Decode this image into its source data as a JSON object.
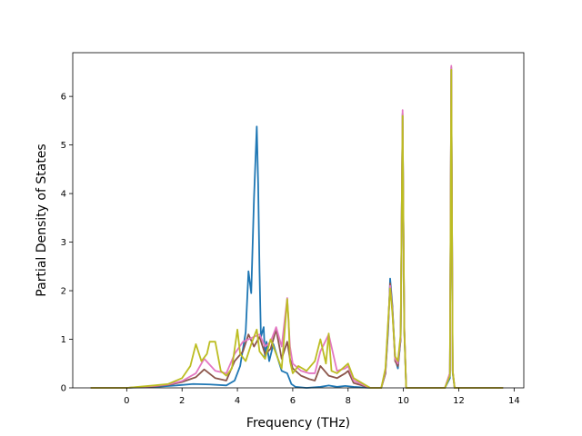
{
  "chart_data": {
    "type": "line",
    "title": "",
    "xlabel": "Frequency (THz)",
    "ylabel": "Partial Density of States",
    "xlim": [
      -1.95,
      14.35
    ],
    "ylim": [
      0,
      6.9
    ],
    "xticks": [
      0,
      2,
      4,
      6,
      8,
      10,
      12,
      14
    ],
    "yticks": [
      0,
      1,
      2,
      3,
      4,
      5,
      6
    ],
    "grid": false,
    "legend": "none",
    "series": [
      {
        "color": "#1f77b4",
        "x": [
          -1.3,
          0,
          1,
          1.8,
          2.4,
          3.0,
          3.6,
          3.9,
          4.1,
          4.3,
          4.4,
          4.5,
          4.6,
          4.7,
          4.75,
          4.8,
          4.85,
          4.95,
          5.0,
          5.05,
          5.15,
          5.3,
          5.6,
          5.8,
          5.95,
          6.1,
          6.5,
          7.0,
          7.3,
          7.6,
          7.9,
          8.2,
          8.8,
          9.2,
          9.35,
          9.45,
          9.52,
          9.6,
          9.7,
          9.8,
          9.9,
          9.97,
          10.03,
          10.1,
          10.2,
          11.5,
          11.68,
          11.73,
          11.78,
          11.85,
          12.0,
          13.6
        ],
        "y": [
          0,
          0,
          0.02,
          0.05,
          0.08,
          0.07,
          0.05,
          0.15,
          0.45,
          1.15,
          2.4,
          1.95,
          3.9,
          5.38,
          4.2,
          2.4,
          1.05,
          1.25,
          0.6,
          0.95,
          0.55,
          0.9,
          0.35,
          0.3,
          0.08,
          0.02,
          0,
          0.02,
          0.05,
          0.02,
          0.04,
          0.02,
          0,
          0,
          0.3,
          1.2,
          2.25,
          1.7,
          0.6,
          0.4,
          1.0,
          5.6,
          1.2,
          0,
          0,
          0,
          0.2,
          6.55,
          0.3,
          0,
          0,
          0
        ]
      },
      {
        "color": "#8c564b",
        "x": [
          -1.3,
          0,
          1,
          1.5,
          2,
          2.5,
          2.8,
          3.2,
          3.6,
          3.9,
          4.2,
          4.4,
          4.6,
          4.8,
          5.0,
          5.2,
          5.4,
          5.6,
          5.8,
          5.9,
          6.0,
          6.3,
          6.6,
          6.8,
          7.0,
          7.3,
          7.6,
          7.9,
          8.0,
          8.2,
          8.8,
          9.2,
          9.35,
          9.45,
          9.52,
          9.6,
          9.7,
          9.8,
          9.9,
          9.97,
          10.03,
          10.1,
          10.2,
          11.5,
          11.68,
          11.73,
          11.78,
          11.85,
          12.0,
          13.6
        ],
        "y": [
          0,
          0,
          0.03,
          0.06,
          0.12,
          0.22,
          0.38,
          0.2,
          0.15,
          0.55,
          0.75,
          1.1,
          0.85,
          1.05,
          0.7,
          0.8,
          1.2,
          0.6,
          0.95,
          0.6,
          0.4,
          0.25,
          0.18,
          0.15,
          0.45,
          0.25,
          0.2,
          0.3,
          0.35,
          0.1,
          0,
          0,
          0.3,
          1.3,
          2.15,
          1.65,
          0.55,
          0.45,
          1.0,
          5.65,
          1.25,
          0,
          0,
          0,
          0.3,
          6.6,
          0.35,
          0,
          0,
          0
        ]
      },
      {
        "color": "#e377c2",
        "x": [
          -1.3,
          0,
          1,
          1.5,
          2,
          2.5,
          2.8,
          3.2,
          3.6,
          3.9,
          4.2,
          4.4,
          4.6,
          4.8,
          5.0,
          5.2,
          5.4,
          5.6,
          5.8,
          5.9,
          6.0,
          6.3,
          6.6,
          6.8,
          7.0,
          7.3,
          7.6,
          7.9,
          8.0,
          8.2,
          8.8,
          9.2,
          9.35,
          9.45,
          9.52,
          9.6,
          9.7,
          9.8,
          9.9,
          9.97,
          10.03,
          10.1,
          10.2,
          11.5,
          11.68,
          11.73,
          11.78,
          11.85,
          12.0,
          13.6
        ],
        "y": [
          0,
          0,
          0.04,
          0.07,
          0.14,
          0.3,
          0.6,
          0.35,
          0.3,
          0.7,
          0.95,
          1.0,
          1.05,
          1.1,
          0.85,
          0.95,
          1.25,
          0.85,
          1.85,
          0.85,
          0.5,
          0.35,
          0.3,
          0.3,
          0.75,
          1.1,
          0.35,
          0.4,
          0.45,
          0.15,
          0,
          0,
          0.35,
          1.35,
          2.1,
          1.6,
          0.6,
          0.5,
          1.05,
          5.72,
          1.3,
          0,
          0,
          0,
          0.3,
          6.63,
          0.35,
          0,
          0,
          0
        ]
      },
      {
        "color": "#bcbd22",
        "x": [
          -1.3,
          0,
          1,
          1.5,
          2,
          2.3,
          2.5,
          2.7,
          2.9,
          3.0,
          3.2,
          3.4,
          3.6,
          3.8,
          4.0,
          4.1,
          4.3,
          4.5,
          4.7,
          4.8,
          5.0,
          5.2,
          5.4,
          5.6,
          5.8,
          5.85,
          5.9,
          6.0,
          6.2,
          6.5,
          6.8,
          7.0,
          7.2,
          7.3,
          7.4,
          7.6,
          7.9,
          8.0,
          8.2,
          8.8,
          9.2,
          9.35,
          9.45,
          9.52,
          9.6,
          9.7,
          9.8,
          9.9,
          9.97,
          10.03,
          10.1,
          10.2,
          11.5,
          11.68,
          11.73,
          11.78,
          11.85,
          12.0,
          13.6
        ],
        "y": [
          0,
          0,
          0.05,
          0.08,
          0.2,
          0.45,
          0.9,
          0.55,
          0.7,
          0.95,
          0.95,
          0.35,
          0.25,
          0.4,
          1.2,
          0.7,
          0.55,
          0.9,
          1.2,
          0.75,
          0.6,
          1.0,
          0.7,
          0.4,
          1.83,
          1.4,
          0.55,
          0.3,
          0.45,
          0.35,
          0.55,
          1.0,
          0.5,
          1.12,
          0.35,
          0.3,
          0.45,
          0.5,
          0.2,
          0,
          0,
          0.4,
          1.4,
          2.05,
          1.55,
          0.65,
          0.55,
          1.1,
          5.6,
          1.2,
          0,
          0,
          0,
          0.25,
          6.55,
          0.35,
          0,
          0,
          0
        ]
      }
    ]
  }
}
